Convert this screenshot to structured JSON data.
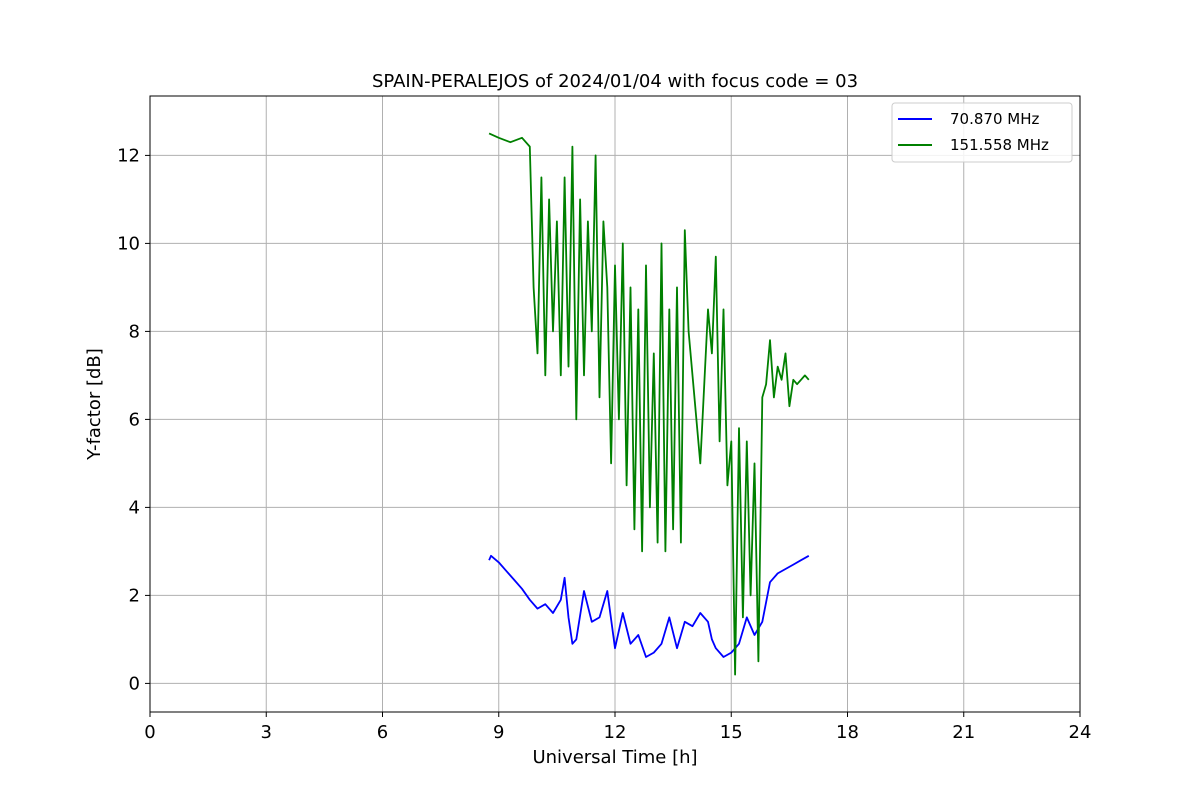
{
  "chart_data": {
    "type": "line",
    "title": "SPAIN-PERALEJOS of 2024/01/04 with focus code = 03",
    "xlabel": "Universal Time [h]",
    "ylabel": "Y-factor [dB]",
    "xlim": [
      0,
      24
    ],
    "ylim": [
      -0.65,
      13.35
    ],
    "xticks": [
      0,
      3,
      6,
      9,
      12,
      15,
      18,
      21,
      24
    ],
    "yticks": [
      0,
      2,
      4,
      6,
      8,
      10,
      12
    ],
    "grid": true,
    "legend_position": "top-right",
    "series": [
      {
        "name": "70.870 MHz",
        "color": "#0000ff",
        "x": [
          8.75,
          8.8,
          9.0,
          9.2,
          9.4,
          9.6,
          9.8,
          10.0,
          10.2,
          10.4,
          10.6,
          10.7,
          10.8,
          10.9,
          11.0,
          11.2,
          11.4,
          11.6,
          11.8,
          12.0,
          12.2,
          12.4,
          12.6,
          12.8,
          13.0,
          13.2,
          13.4,
          13.6,
          13.8,
          14.0,
          14.2,
          14.4,
          14.5,
          14.6,
          14.8,
          15.0,
          15.2,
          15.4,
          15.6,
          15.8,
          16.0,
          16.2,
          16.4,
          16.6,
          16.8,
          17.0
        ],
        "y": [
          2.8,
          2.9,
          2.75,
          2.55,
          2.35,
          2.15,
          1.9,
          1.7,
          1.8,
          1.6,
          1.9,
          2.4,
          1.5,
          0.9,
          1.0,
          2.1,
          1.4,
          1.5,
          2.1,
          0.8,
          1.6,
          0.9,
          1.1,
          0.6,
          0.7,
          0.9,
          1.5,
          0.8,
          1.4,
          1.3,
          1.6,
          1.4,
          1.0,
          0.8,
          0.6,
          0.7,
          0.9,
          1.5,
          1.1,
          1.4,
          2.3,
          2.5,
          2.6,
          2.7,
          2.8,
          2.9
        ]
      },
      {
        "name": "151.558 MHz",
        "color": "#008000",
        "x": [
          8.75,
          9.0,
          9.3,
          9.6,
          9.8,
          9.9,
          10.0,
          10.1,
          10.2,
          10.3,
          10.4,
          10.5,
          10.6,
          10.7,
          10.8,
          10.9,
          11.0,
          11.1,
          11.2,
          11.3,
          11.4,
          11.5,
          11.6,
          11.7,
          11.8,
          11.9,
          12.0,
          12.1,
          12.2,
          12.3,
          12.4,
          12.5,
          12.6,
          12.7,
          12.8,
          12.9,
          13.0,
          13.1,
          13.2,
          13.3,
          13.4,
          13.5,
          13.6,
          13.7,
          13.8,
          13.9,
          14.0,
          14.2,
          14.4,
          14.5,
          14.6,
          14.7,
          14.8,
          14.9,
          15.0,
          15.1,
          15.2,
          15.3,
          15.4,
          15.5,
          15.6,
          15.7,
          15.8,
          15.9,
          16.0,
          16.1,
          16.2,
          16.3,
          16.4,
          16.5,
          16.6,
          16.7,
          16.8,
          16.9,
          17.0
        ],
        "y": [
          12.5,
          12.4,
          12.3,
          12.4,
          12.2,
          9.0,
          7.5,
          11.5,
          7.0,
          11.0,
          8.0,
          10.5,
          7.0,
          11.5,
          7.2,
          12.2,
          6.0,
          11.0,
          7.0,
          10.5,
          8.0,
          12.0,
          6.5,
          10.5,
          9.0,
          5.0,
          9.5,
          6.0,
          10.0,
          4.5,
          9.0,
          3.5,
          8.5,
          3.0,
          9.5,
          4.0,
          7.5,
          3.2,
          10.0,
          3.0,
          8.5,
          3.5,
          9.0,
          3.2,
          10.3,
          8.0,
          7.0,
          5.0,
          8.5,
          7.5,
          9.7,
          5.5,
          8.5,
          4.5,
          5.5,
          0.2,
          5.8,
          1.5,
          5.5,
          2.0,
          5.0,
          0.5,
          6.5,
          6.8,
          7.8,
          6.5,
          7.2,
          6.9,
          7.5,
          6.3,
          6.9,
          6.8,
          6.9,
          7.0,
          6.9
        ]
      }
    ]
  }
}
